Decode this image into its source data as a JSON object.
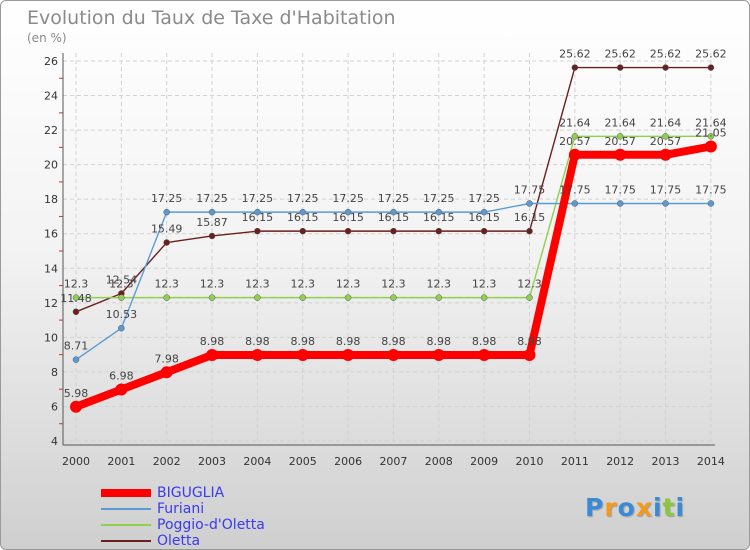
{
  "chart_data": {
    "type": "line",
    "title": "Evolution du Taux de Taxe d'Habitation",
    "unit_label": "(en %)",
    "x": [
      "2000",
      "2001",
      "2002",
      "2003",
      "2004",
      "2005",
      "2006",
      "2007",
      "2008",
      "2009",
      "2010",
      "2011",
      "2012",
      "2013",
      "2014"
    ],
    "ylim": [
      4,
      26
    ],
    "yticks": [
      4,
      6,
      8,
      10,
      12,
      14,
      16,
      18,
      20,
      22,
      24,
      26
    ],
    "grid": true,
    "legend_position": "bottom-left",
    "series": [
      {
        "name": "BIGUGLIA",
        "color": "#ff0000",
        "values": [
          5.98,
          6.98,
          7.98,
          8.98,
          8.98,
          8.98,
          8.98,
          8.98,
          8.98,
          8.98,
          8.98,
          20.57,
          20.57,
          20.57,
          21.05
        ],
        "labels": [
          "5.98",
          "6.98",
          "7.98",
          "8.98",
          "8.98",
          "8.98",
          "8.98",
          "8.98",
          "8.98",
          "8.98",
          "8.98",
          "20.57",
          "20.57",
          "20.57",
          "21.05"
        ]
      },
      {
        "name": "Furiani",
        "color": "#5b9bd5",
        "values": [
          8.71,
          10.53,
          17.25,
          17.25,
          17.25,
          17.25,
          17.25,
          17.25,
          17.25,
          17.25,
          17.75,
          17.75,
          17.75,
          17.75,
          17.75
        ],
        "labels": [
          "8.71",
          "10.53",
          "17.25",
          "17.25",
          "17.25",
          "17.25",
          "17.25",
          "17.25",
          "17.25",
          "17.25",
          "17.75",
          "17.75",
          "17.75",
          "17.75",
          "17.75"
        ]
      },
      {
        "name": "Poggio-d'Oletta",
        "color": "#8fd14f",
        "values": [
          12.3,
          12.3,
          12.3,
          12.3,
          12.3,
          12.3,
          12.3,
          12.3,
          12.3,
          12.3,
          12.3,
          21.64,
          21.64,
          21.64,
          21.64
        ],
        "labels": [
          "12.3",
          "12.3",
          "12.3",
          "12.3",
          "12.3",
          "12.3",
          "12.3",
          "12.3",
          "12.3",
          "12.3",
          "12.3",
          "21.64",
          "21.64",
          "21.64",
          "21.64"
        ]
      },
      {
        "name": "Oletta",
        "color": "#6b1f1f",
        "values": [
          11.48,
          12.54,
          15.49,
          15.87,
          16.15,
          16.15,
          16.15,
          16.15,
          16.15,
          16.15,
          16.15,
          25.62,
          25.62,
          25.62,
          25.62
        ],
        "labels": [
          "11.48",
          "12.54",
          "15.49",
          "15.87",
          "16.15",
          "16.15",
          "16.15",
          "16.15",
          "16.15",
          "16.15",
          "16.15",
          "25.62",
          "25.62",
          "25.62",
          "25.62"
        ]
      }
    ]
  },
  "logo": {
    "letters": [
      "P",
      "r",
      "o",
      "x",
      "i",
      "t",
      "i"
    ],
    "colors": [
      "#3a8ad6",
      "#f39a1e",
      "#3a8ad6",
      "#f39a1e",
      "#3a8ad6",
      "#8cc63f",
      "#3a8ad6"
    ]
  }
}
